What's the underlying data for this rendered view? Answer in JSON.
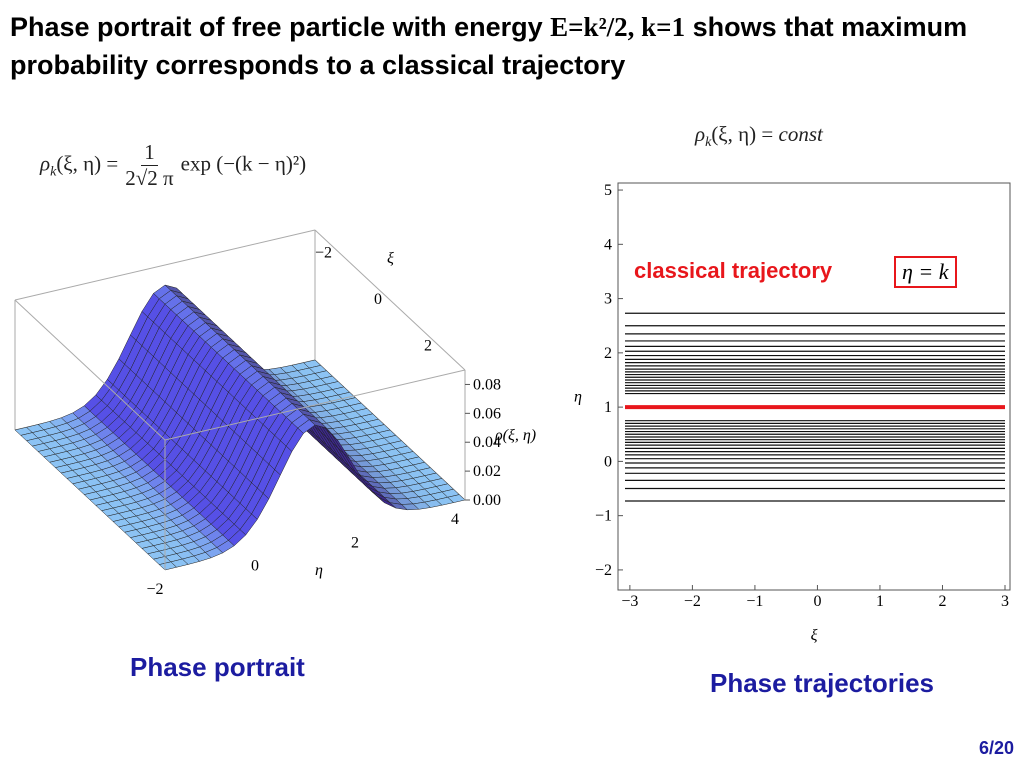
{
  "slide": {
    "title_prefix": "Phase portrait of free particle with energy ",
    "title_math": "E=k²/2, k=1",
    "title_suffix": " shows that maximum probability corresponds to a classical trajectory",
    "formula_left": {
      "lhs": "ρ",
      "sub": "k",
      "args": "(ξ, η) =",
      "numerator": "1",
      "denominator": "2√2 π",
      "rhs": "exp (−(k − η)²)"
    },
    "formula_right": {
      "lhs": "ρ",
      "sub": "k",
      "args": "(ξ, η) =",
      "rhs": "const"
    },
    "surface": {
      "xi_label": "ξ",
      "eta_label": "η",
      "rho_label": "ρ(ξ, η)",
      "xi_ticks": [
        {
          "value": -2,
          "label": "−2"
        },
        0,
        2
      ],
      "eta_ticks": [
        {
          "value": -2,
          "label": "−2"
        },
        0,
        2,
        4
      ],
      "rho_ticks": [
        {
          "value": 0.08,
          "label": "0.08"
        },
        {
          "value": 0.06,
          "label": "0.06"
        },
        {
          "value": 0.04,
          "label": "0.04"
        },
        {
          "value": 0.02,
          "label": "0.02"
        },
        {
          "value": 0,
          "label": "0.00"
        }
      ]
    },
    "trajectories": {
      "xlim": [
        -3.19,
        3.08
      ],
      "ylim": [
        -2.37,
        5.13
      ],
      "xticks": [
        {
          "value": -3,
          "label": "−3"
        },
        {
          "value": -2,
          "label": "−2"
        },
        {
          "value": -1,
          "label": "−1"
        },
        0,
        1,
        2,
        3
      ],
      "yticks": [
        5,
        4,
        3,
        2,
        1,
        0,
        {
          "value": -1,
          "label": "−1"
        },
        {
          "value": -2,
          "label": "−2"
        }
      ],
      "xlabel": "ξ",
      "ylabel": "η",
      "levels": [
        2.73,
        2.5,
        2.35,
        2.22,
        2.12,
        2.03,
        1.95,
        1.88,
        1.82,
        1.76,
        1.7,
        1.65,
        1.6,
        1.55,
        1.5,
        1.45,
        1.4,
        1.35,
        1.3,
        1.25,
        0.75,
        0.7,
        0.65,
        0.6,
        0.55,
        0.5,
        0.45,
        0.4,
        0.35,
        0.3,
        0.24,
        0.18,
        0.12,
        0.05,
        -0.03,
        -0.12,
        -0.22,
        -0.35,
        -0.5,
        -0.73
      ],
      "classical_level": 1,
      "classical_color": "#e8161b",
      "annotation": "classical trajectory",
      "annotation_math": "η = k"
    },
    "caption_left": "Phase portrait",
    "caption_right": "Phase trajectories",
    "page_number": "6/20"
  }
}
